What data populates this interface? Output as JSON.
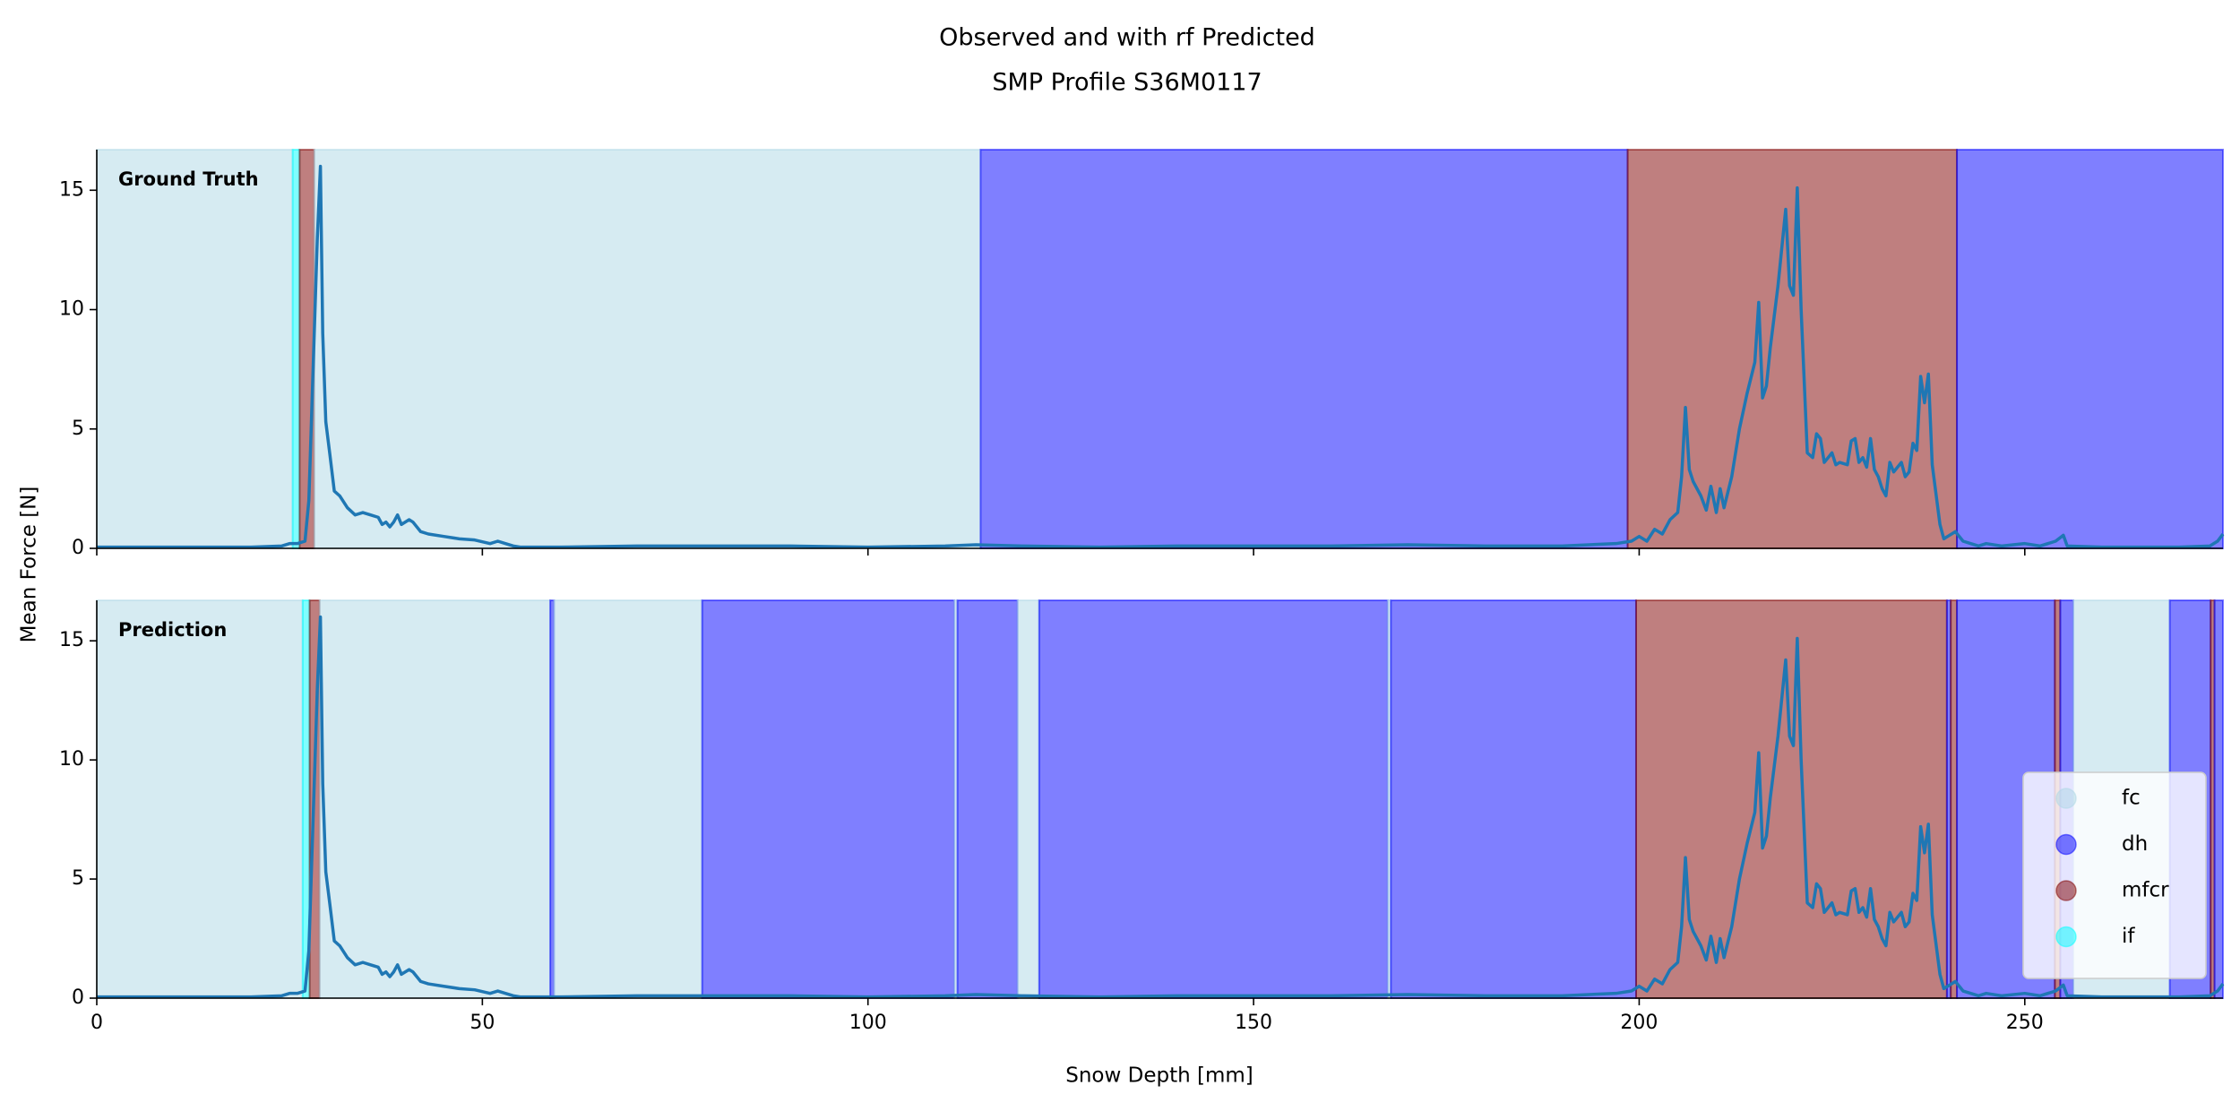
{
  "chart_data": {
    "type": "line",
    "title": "Observed and with rf Predicted",
    "subtitle": "SMP Profile S36M0117",
    "x_label": "Snow Depth [mm]",
    "y_label": "Mean Force [N]",
    "xlim": [
      0,
      275.7
    ],
    "xticks": [
      0,
      50,
      100,
      150,
      200,
      250
    ],
    "ylim": [
      0,
      16.7
    ],
    "yticks": [
      0,
      5,
      10,
      15
    ],
    "color": "#1f77b4",
    "x": [
      0,
      10,
      20,
      24,
      25,
      26,
      27,
      27.5,
      28,
      28.6,
      29,
      29.3,
      29.7,
      30.2,
      30.8,
      31.5,
      32.5,
      33.5,
      34.5,
      35.5,
      36.5,
      37,
      37.5,
      38,
      38.5,
      39,
      39.5,
      40.5,
      41,
      42,
      43,
      45,
      47,
      49,
      51,
      52,
      53,
      54,
      55,
      60,
      70,
      80,
      90,
      100,
      110,
      114,
      120,
      130,
      140,
      150,
      160,
      170,
      180,
      190,
      197,
      199,
      200,
      201,
      202,
      203,
      204,
      205,
      205.5,
      206,
      206.5,
      207,
      208,
      208.7,
      209.3,
      210,
      210.5,
      211,
      212,
      213,
      214,
      215,
      215.5,
      216,
      216.5,
      217,
      218,
      219,
      219.5,
      220,
      220.5,
      221,
      221.8,
      222.5,
      223,
      223.5,
      224,
      225,
      225.5,
      226,
      227,
      227.5,
      228,
      228.5,
      229,
      229.5,
      230,
      230.5,
      231,
      231.5,
      232,
      232.5,
      233,
      234,
      234.5,
      235,
      235.5,
      236,
      236.5,
      237,
      237.5,
      238,
      239,
      239.5,
      240,
      241,
      242,
      243,
      244,
      245,
      247,
      250,
      252,
      254,
      255,
      255.5,
      260,
      270,
      274,
      275,
      275.7
    ],
    "values": [
      0.05,
      0.05,
      0.05,
      0.1,
      0.2,
      0.2,
      0.3,
      2,
      7,
      13,
      16,
      9,
      5.3,
      4,
      2.4,
      2.2,
      1.7,
      1.4,
      1.5,
      1.4,
      1.3,
      1.0,
      1.1,
      0.9,
      1.1,
      1.4,
      1.0,
      1.2,
      1.1,
      0.7,
      0.6,
      0.5,
      0.4,
      0.35,
      0.2,
      0.3,
      0.2,
      0.1,
      0.05,
      0.05,
      0.1,
      0.1,
      0.1,
      0.05,
      0.1,
      0.15,
      0.1,
      0.05,
      0.1,
      0.1,
      0.1,
      0.15,
      0.1,
      0.1,
      0.2,
      0.3,
      0.5,
      0.3,
      0.8,
      0.6,
      1.2,
      1.5,
      3,
      5.9,
      3.3,
      2.8,
      2.2,
      1.6,
      2.6,
      1.5,
      2.5,
      1.7,
      3,
      5,
      6.5,
      7.8,
      10.3,
      6.3,
      6.8,
      8.4,
      11,
      14.2,
      11,
      10.6,
      15.1,
      10,
      4,
      3.8,
      4.8,
      4.6,
      3.6,
      4,
      3.5,
      3.6,
      3.5,
      4.5,
      4.6,
      3.6,
      3.8,
      3.4,
      4.6,
      3.3,
      3.0,
      2.5,
      2.2,
      3.6,
      3.2,
      3.6,
      3.0,
      3.2,
      4.4,
      4.1,
      7.2,
      6.1,
      7.3,
      3.5,
      1.0,
      0.4,
      0.5,
      0.7,
      0.3,
      0.2,
      0.1,
      0.2,
      0.1,
      0.2,
      0.1,
      0.3,
      0.55,
      0.1,
      0.05,
      0.05,
      0.1,
      0.3,
      0.6
    ],
    "legend": {
      "loc": "lower right",
      "entries": [
        {
          "name": "fc",
          "color": "#add8e6"
        },
        {
          "name": "dh",
          "color": "#0000ff"
        },
        {
          "name": "mfcr",
          "color": "#800000"
        },
        {
          "name": "if",
          "color": "#00ffff"
        }
      ]
    },
    "panels": [
      {
        "label": "Ground Truth",
        "spans": [
          {
            "class": "fc",
            "start": 0,
            "end": 25.4
          },
          {
            "class": "if",
            "start": 25.4,
            "end": 26.3
          },
          {
            "class": "mfcr",
            "start": 26.3,
            "end": 28.2
          },
          {
            "class": "fc",
            "start": 28.2,
            "end": 114.6
          },
          {
            "class": "dh",
            "start": 114.6,
            "end": 198.5
          },
          {
            "class": "mfcr",
            "start": 198.5,
            "end": 241.2
          },
          {
            "class": "dh",
            "start": 241.2,
            "end": 275.7
          }
        ]
      },
      {
        "label": "Prediction",
        "spans": [
          {
            "class": "fc",
            "start": 0,
            "end": 26.7
          },
          {
            "class": "if",
            "start": 26.7,
            "end": 27.6
          },
          {
            "class": "mfcr",
            "start": 27.6,
            "end": 28.9
          },
          {
            "class": "fc",
            "start": 28.9,
            "end": 58.8
          },
          {
            "class": "dh",
            "start": 58.8,
            "end": 59.3
          },
          {
            "class": "fc",
            "start": 59.3,
            "end": 78.5
          },
          {
            "class": "dh",
            "start": 78.5,
            "end": 111.2
          },
          {
            "class": "fc",
            "start": 111.2,
            "end": 111.6
          },
          {
            "class": "dh",
            "start": 111.6,
            "end": 119.4
          },
          {
            "class": "fc",
            "start": 119.4,
            "end": 122.2
          },
          {
            "class": "dh",
            "start": 122.2,
            "end": 167.4
          },
          {
            "class": "fc",
            "start": 167.4,
            "end": 167.8
          },
          {
            "class": "dh",
            "start": 167.8,
            "end": 199.6
          },
          {
            "class": "mfcr",
            "start": 199.6,
            "end": 239.9
          },
          {
            "class": "dh",
            "start": 239.9,
            "end": 240.4
          },
          {
            "class": "mfcr",
            "start": 240.4,
            "end": 241.2
          },
          {
            "class": "dh",
            "start": 241.2,
            "end": 253.9
          },
          {
            "class": "mfcr",
            "start": 253.9,
            "end": 254.6
          },
          {
            "class": "dh",
            "start": 254.6,
            "end": 256.3
          },
          {
            "class": "fc",
            "start": 256.3,
            "end": 268.8
          },
          {
            "class": "dh",
            "start": 268.8,
            "end": 274.1
          },
          {
            "class": "mfcr",
            "start": 274.1,
            "end": 274.6
          },
          {
            "class": "dh",
            "start": 274.6,
            "end": 275.7
          }
        ]
      }
    ]
  }
}
